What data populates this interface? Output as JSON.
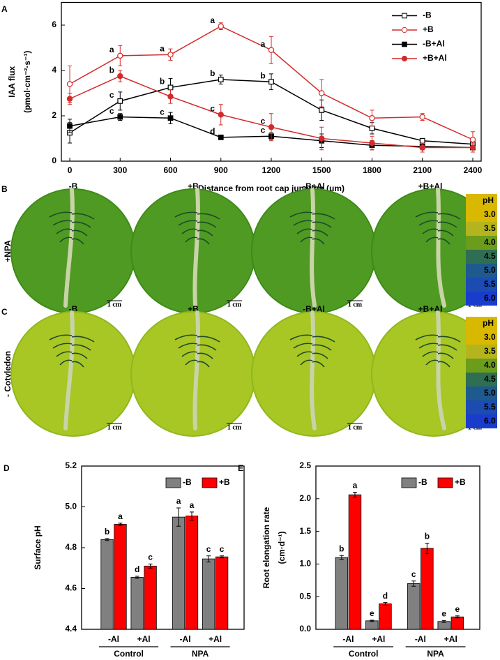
{
  "chart_data": [
    {
      "type": "line",
      "panel": "A",
      "xlabel": "Distance from root cap junction (μm)",
      "ylabel": [
        "IAA flux",
        "(pmol·cm⁻²·s⁻¹)"
      ],
      "x": [
        0,
        300,
        600,
        900,
        1200,
        1500,
        1800,
        2100,
        2400
      ],
      "xlim": [
        -50,
        2450
      ],
      "xticks": [
        0,
        300,
        600,
        900,
        1200,
        1500,
        1800,
        2100,
        2400
      ],
      "ylim": [
        0,
        7
      ],
      "yticks": [
        0,
        2,
        4,
        6
      ],
      "legend": "upper right",
      "series": [
        {
          "name": "-B",
          "color": "#000000",
          "marker": "square",
          "filled": false,
          "values": [
            1.25,
            2.65,
            3.25,
            3.6,
            3.5,
            2.25,
            1.45,
            0.9,
            0.75
          ],
          "errors": [
            0.45,
            0.4,
            0.4,
            0.2,
            0.35,
            0.45,
            0.25,
            0.1,
            0.1
          ],
          "letters": [
            null,
            "c",
            "b",
            "b",
            "b",
            null,
            null,
            null,
            null
          ]
        },
        {
          "name": "+B",
          "color": "#d42a2a",
          "marker": "circle",
          "filled": false,
          "values": [
            3.4,
            4.65,
            4.7,
            5.95,
            4.9,
            3.0,
            1.9,
            1.95,
            0.95
          ],
          "errors": [
            0.8,
            0.45,
            0.25,
            0.15,
            0.6,
            0.6,
            0.35,
            0.15,
            0.35
          ],
          "letters": [
            null,
            "a",
            "a",
            "a",
            "a",
            null,
            null,
            null,
            null
          ]
        },
        {
          "name": "-B+Al",
          "color": "#000000",
          "marker": "square",
          "filled": true,
          "values": [
            1.55,
            1.95,
            1.9,
            1.05,
            1.1,
            0.9,
            0.7,
            0.65,
            0.6
          ],
          "errors": [
            0.3,
            0.15,
            0.25,
            0.07,
            0.15,
            0.3,
            0.2,
            0.15,
            0.1
          ],
          "letters": [
            null,
            "c",
            "c",
            "d",
            "c",
            null,
            null,
            null,
            null
          ]
        },
        {
          "name": "+B+Al",
          "color": "#d42a2a",
          "marker": "circle",
          "filled": true,
          "values": [
            2.75,
            3.75,
            2.85,
            2.05,
            1.5,
            1.0,
            0.8,
            0.6,
            0.6
          ],
          "errors": [
            0.25,
            0.25,
            0.3,
            0.45,
            0.6,
            0.5,
            0.3,
            0.2,
            0.2
          ],
          "letters": [
            null,
            "b",
            null,
            "c",
            "c",
            null,
            null,
            null,
            null
          ]
        }
      ]
    },
    {
      "type": "bar",
      "panel": "D",
      "ylabel": [
        "Surface pH"
      ],
      "categories": [
        "-Al",
        "+Al",
        "-Al",
        "+Al"
      ],
      "groups": [
        "Control",
        "NPA"
      ],
      "ylim": [
        4.4,
        5.2
      ],
      "yticks": [
        4.4,
        4.6,
        4.8,
        {
          "value": 5,
          "label": "5.0"
        },
        5.2
      ],
      "legend": "upper right",
      "series": [
        {
          "name": "-B",
          "color": "#808080",
          "values": [
            4.84,
            4.655,
            4.95,
            4.745
          ],
          "errors": [
            0.005,
            0.005,
            0.045,
            0.015
          ],
          "letters": [
            "b",
            "d",
            "a",
            "c"
          ]
        },
        {
          "name": "+B",
          "color": "#ff0000",
          "values": [
            4.915,
            4.71,
            4.955,
            4.755
          ],
          "errors": [
            0.005,
            0.01,
            0.02,
            0.005
          ],
          "letters": [
            "a",
            "c",
            "a",
            "c"
          ]
        }
      ]
    },
    {
      "type": "bar",
      "panel": "E",
      "ylabel": [
        "Root elongation rate",
        "(cm·d⁻¹)"
      ],
      "categories": [
        "-Al",
        "+Al",
        "-Al",
        "+Al"
      ],
      "groups": [
        "Control",
        "NPA"
      ],
      "ylim": [
        0,
        2.5
      ],
      "yticks": [
        {
          "value": 0,
          "label": "0.0"
        },
        0.5,
        {
          "value": 1,
          "label": "1.0"
        },
        1.5,
        {
          "value": 2,
          "label": "2.0"
        },
        2.5
      ],
      "legend": "upper right",
      "series": [
        {
          "name": "-B",
          "color": "#808080",
          "values": [
            1.1,
            0.13,
            0.7,
            0.12
          ],
          "errors": [
            0.03,
            0.01,
            0.04,
            0.015
          ],
          "letters": [
            "b",
            "e",
            "c",
            "e"
          ]
        },
        {
          "name": "+B",
          "color": "#ff0000",
          "values": [
            2.06,
            0.39,
            1.24,
            0.19
          ],
          "errors": [
            0.04,
            0.02,
            0.08,
            0.015
          ],
          "letters": [
            "a",
            "d",
            "b",
            "e"
          ]
        }
      ]
    }
  ],
  "image_panels": [
    {
      "panel": "B",
      "row_label": "+NPA",
      "columns": [
        "-B",
        "+B",
        "-B+Al",
        "+B+Al"
      ],
      "scale_bar": "1 cm",
      "plate_color": "#4f9a22",
      "plate_edge": "#3d8a1a"
    },
    {
      "panel": "C",
      "row_label": "- Cotyledon",
      "columns": [
        "-B",
        "+B",
        "-B+Al",
        "+B+Al"
      ],
      "scale_bar": "1 cm",
      "plate_color": "#a8c624",
      "plate_edge": "#8fb81c"
    }
  ],
  "ph_scale": {
    "title": "pH",
    "levels": [
      "3.0",
      "3.5",
      "4.0",
      "4.5",
      "5.0",
      "5.5",
      "6.0"
    ],
    "colors": [
      "#d8b800",
      "#b4b41e",
      "#6b9c1c",
      "#2f6e52",
      "#1f5a8e",
      "#1c4bb2",
      "#1a3ccc"
    ]
  }
}
